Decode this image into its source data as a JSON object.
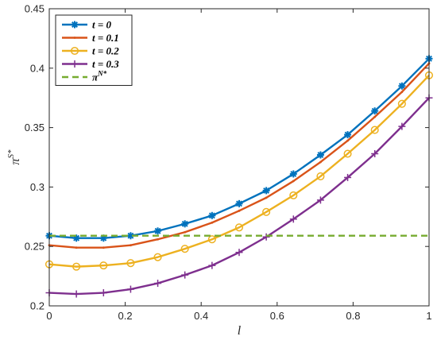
{
  "chart_data": {
    "type": "line",
    "title": "",
    "xlabel": "l",
    "ylabel": "π^{S*}",
    "xlim": [
      0,
      1
    ],
    "ylim": [
      0.2,
      0.45
    ],
    "xticks": [
      0,
      0.2,
      0.4,
      0.6,
      0.8,
      1
    ],
    "xtick_labels": [
      "0",
      "0.2",
      "0.4",
      "0.6",
      "0.8",
      "1"
    ],
    "yticks": [
      0.2,
      0.25,
      0.3,
      0.35,
      0.4,
      0.45
    ],
    "ytick_labels": [
      "0.2",
      "0.25",
      "0.3",
      "0.35",
      "0.4",
      "0.45"
    ],
    "grid": false,
    "legend_position": "top-left",
    "x": [
      0,
      0.0714,
      0.1429,
      0.2143,
      0.2857,
      0.3571,
      0.4286,
      0.5,
      0.5714,
      0.6429,
      0.7143,
      0.7857,
      0.8571,
      0.9286,
      1.0
    ],
    "series": [
      {
        "name": "t = 0",
        "color": "#0072BD",
        "marker": "asterisk",
        "values": [
          0.259,
          0.257,
          0.257,
          0.259,
          0.263,
          0.269,
          0.276,
          0.286,
          0.297,
          0.311,
          0.327,
          0.344,
          0.364,
          0.385,
          0.408
        ]
      },
      {
        "name": "t = 0.1",
        "color": "#D95319",
        "marker": "point",
        "values": [
          0.251,
          0.249,
          0.249,
          0.251,
          0.256,
          0.262,
          0.27,
          0.28,
          0.291,
          0.305,
          0.321,
          0.339,
          0.359,
          0.38,
          0.404
        ]
      },
      {
        "name": "t = 0.2",
        "color": "#EDB120",
        "marker": "circle",
        "values": [
          0.235,
          0.233,
          0.234,
          0.236,
          0.241,
          0.248,
          0.256,
          0.266,
          0.279,
          0.293,
          0.309,
          0.328,
          0.348,
          0.37,
          0.394
        ]
      },
      {
        "name": "t = 0.3",
        "color": "#7E2F8E",
        "marker": "plus",
        "values": [
          0.211,
          0.21,
          0.211,
          0.214,
          0.219,
          0.226,
          0.234,
          0.245,
          0.258,
          0.273,
          0.289,
          0.308,
          0.328,
          0.351,
          0.375
        ]
      },
      {
        "name": "π^{N*}",
        "color": "#77AC30",
        "marker": "none",
        "dashed": true,
        "values": [
          0.259,
          0.259,
          0.259,
          0.259,
          0.259,
          0.259,
          0.259,
          0.259,
          0.259,
          0.259,
          0.259,
          0.259,
          0.259,
          0.259,
          0.259
        ]
      }
    ]
  }
}
